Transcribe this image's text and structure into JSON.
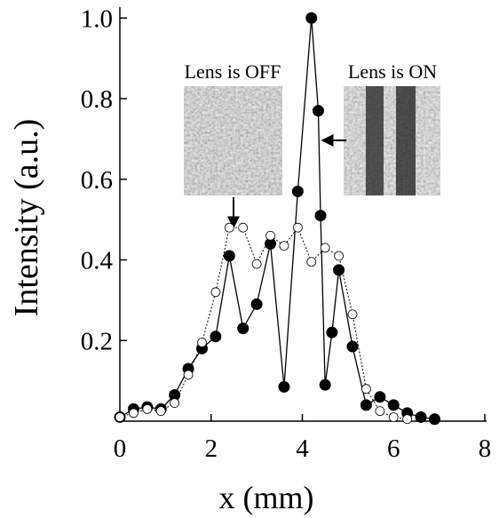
{
  "chart_data": {
    "type": "line",
    "xlabel": "x (mm)",
    "ylabel": "Intensity (a.u.)",
    "annotations": [
      "Lens is OFF",
      "Lens is ON"
    ],
    "xlim": [
      0,
      8
    ],
    "ylim": [
      0,
      1.02
    ],
    "xticks": [
      0,
      2,
      4,
      6,
      8
    ],
    "yticks": [
      0.2,
      0.4,
      0.6,
      0.8,
      {
        "value": 1,
        "label": "1.0"
      }
    ],
    "series": [
      {
        "color": "#000000",
        "marker": "filled",
        "x": [
          0,
          0.3,
          0.6,
          0.9,
          1.2,
          1.5,
          1.8,
          2.1,
          2.4,
          2.7,
          3.0,
          3.3,
          3.6,
          3.9,
          4.2,
          4.35,
          4.4,
          4.5,
          4.65,
          4.8,
          5.1,
          5.4,
          5.7,
          6.0,
          6.3,
          6.6,
          6.9
        ],
        "values": [
          0.01,
          0.03,
          0.035,
          0.03,
          0.065,
          0.13,
          0.18,
          0.21,
          0.41,
          0.23,
          0.29,
          0.44,
          0.085,
          0.57,
          1.0,
          0.77,
          0.51,
          0.09,
          0.22,
          0.375,
          0.185,
          0.04,
          0.06,
          0.04,
          0.02,
          0.01,
          0.005
        ]
      },
      {
        "color": "#000000",
        "marker": "open",
        "x": [
          0,
          0.3,
          0.6,
          0.9,
          1.2,
          1.5,
          1.8,
          2.1,
          2.4,
          2.7,
          3.0,
          3.3,
          3.6,
          3.9,
          4.2,
          4.5,
          4.8,
          5.1,
          5.4,
          5.7,
          6.0,
          6.3
        ],
        "values": [
          0.01,
          0.02,
          0.03,
          0.025,
          0.045,
          0.115,
          0.195,
          0.32,
          0.48,
          0.48,
          0.39,
          0.46,
          0.435,
          0.48,
          0.395,
          0.43,
          0.41,
          0.265,
          0.08,
          0.025,
          0.01,
          0.005
        ]
      }
    ]
  }
}
